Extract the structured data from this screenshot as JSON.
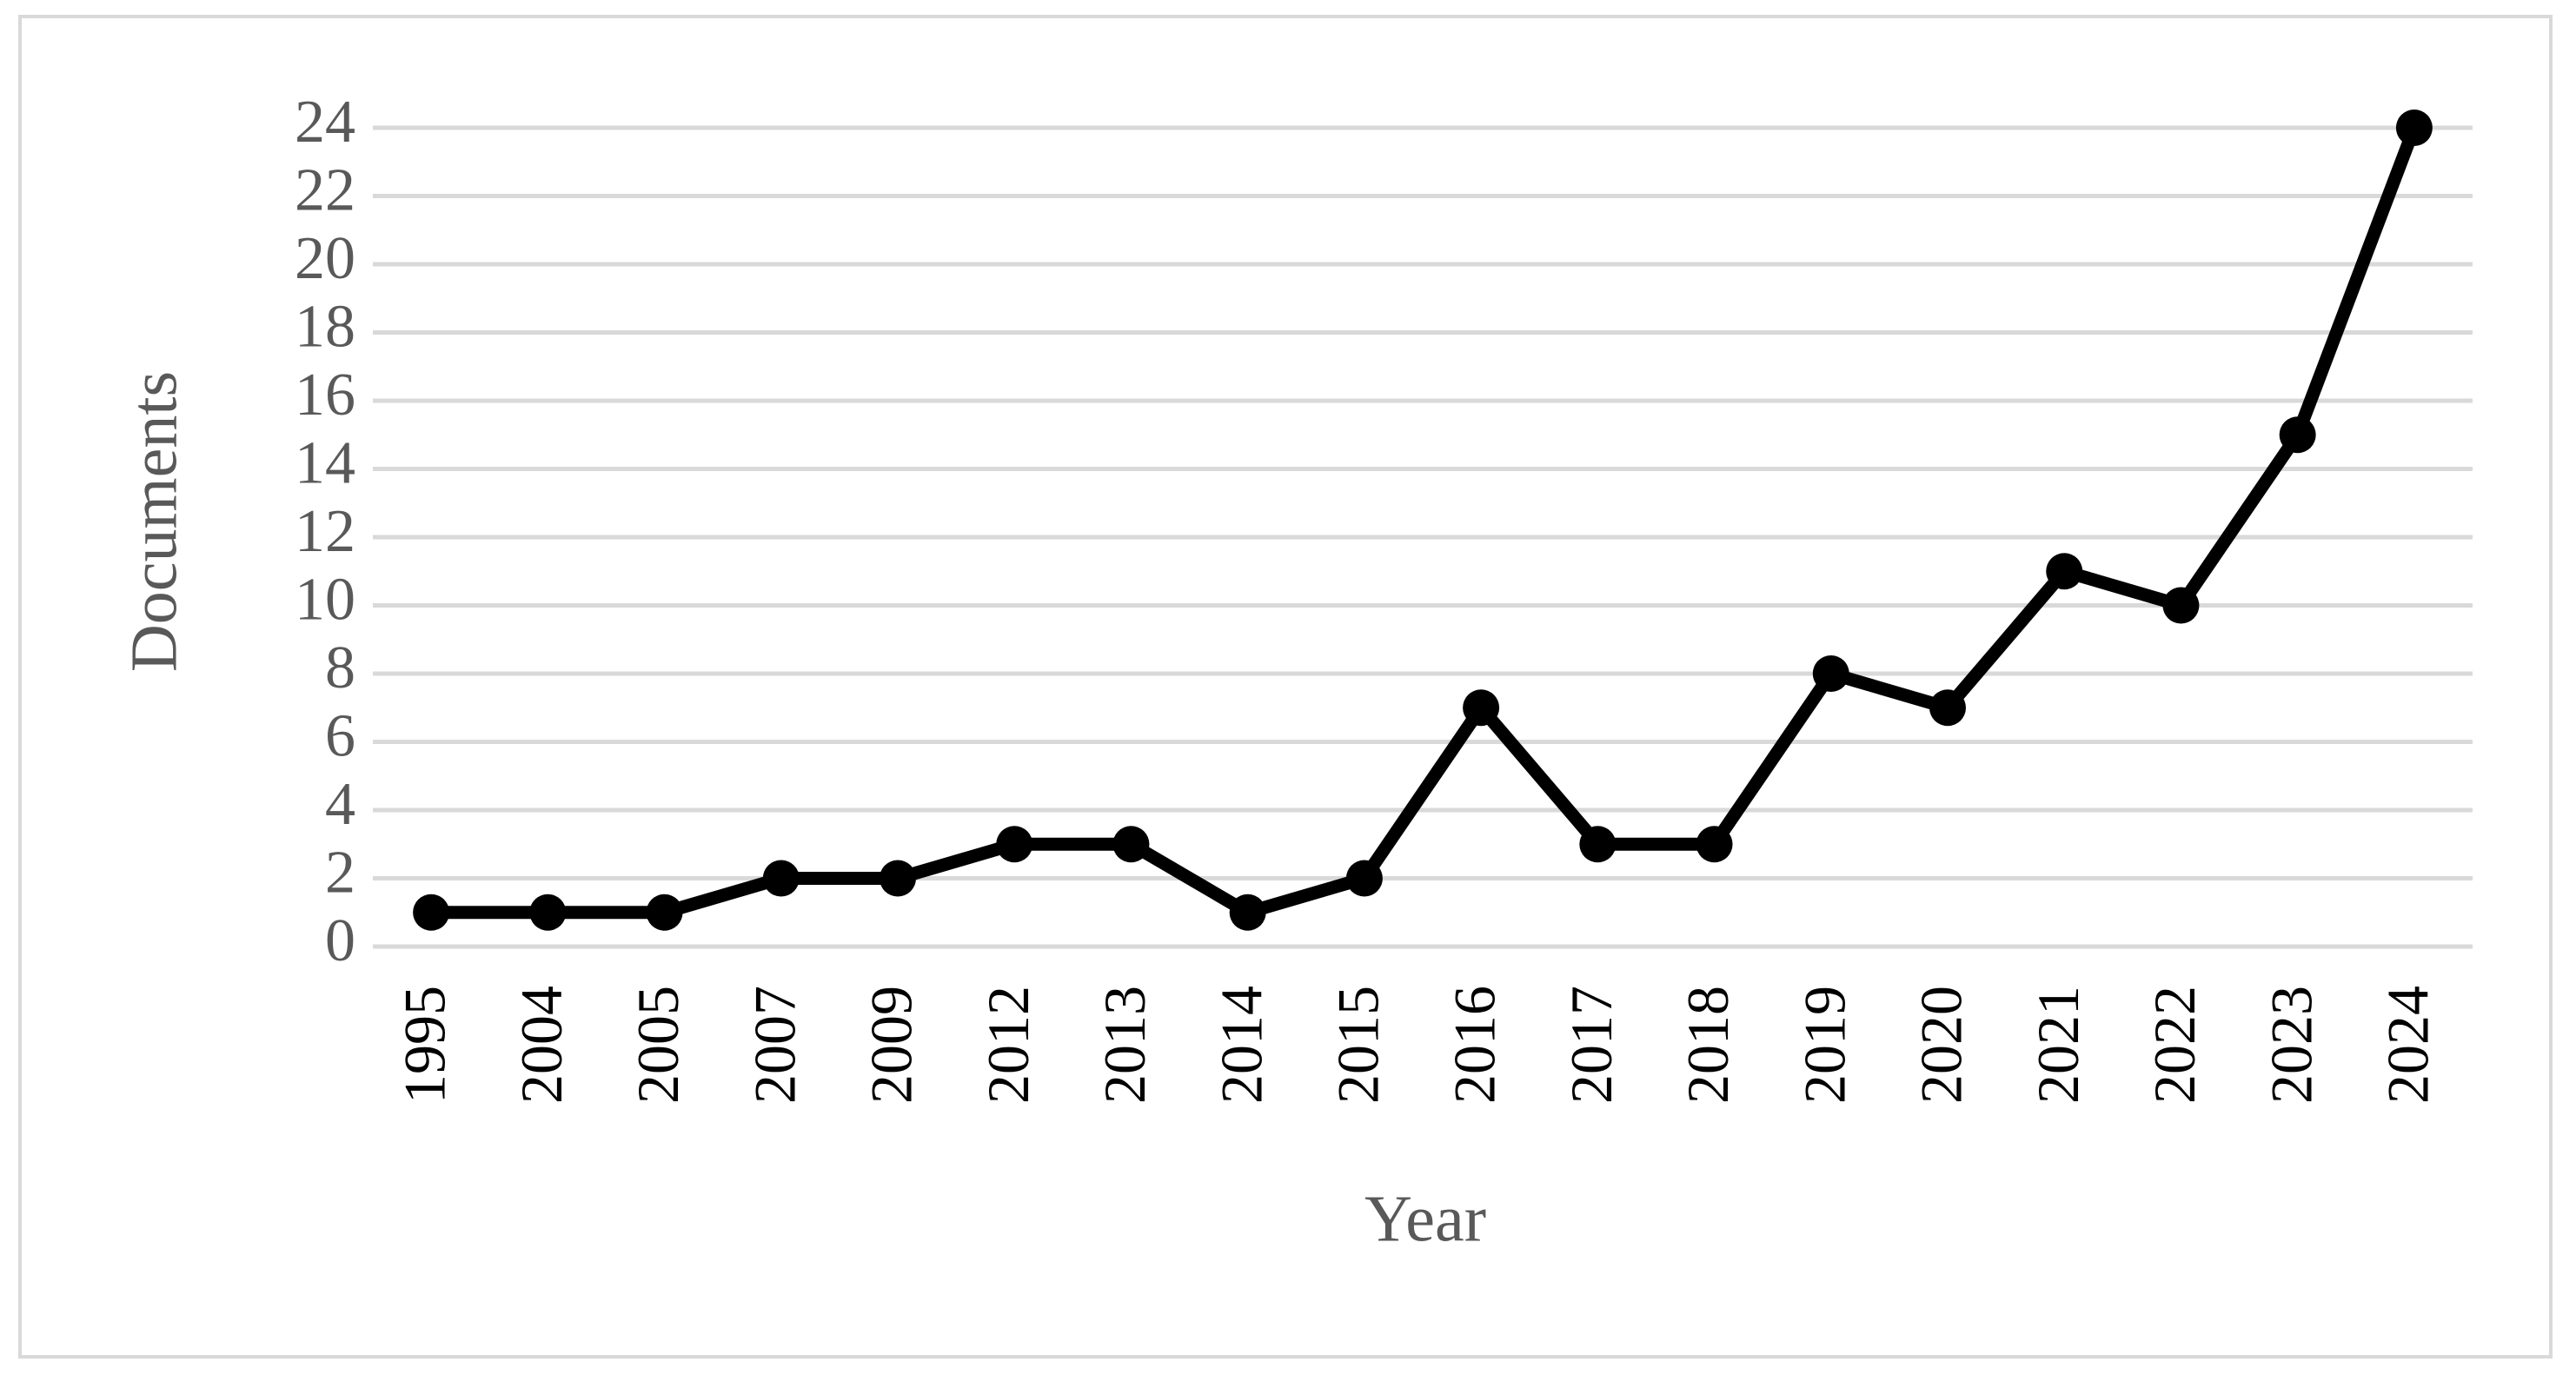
{
  "chart_data": {
    "type": "line",
    "x_label": "Year",
    "y_label": "Documents",
    "categories": [
      "1995",
      "2004",
      "2005",
      "2007",
      "2009",
      "2012",
      "2013",
      "2014",
      "2015",
      "2016",
      "2017",
      "2018",
      "2019",
      "2020",
      "2021",
      "2022",
      "2023",
      "2024"
    ],
    "series": [
      {
        "color": "#000000",
        "values": [
          1,
          1,
          1,
          2,
          2,
          3,
          3,
          1,
          2,
          7,
          3,
          3,
          8,
          7,
          11,
          10,
          15,
          24
        ]
      }
    ],
    "ylim": [
      0,
      24
    ],
    "yticks": [
      0,
      2,
      4,
      6,
      8,
      10,
      12,
      14,
      16,
      18,
      20,
      22,
      24
    ],
    "grid": true
  }
}
